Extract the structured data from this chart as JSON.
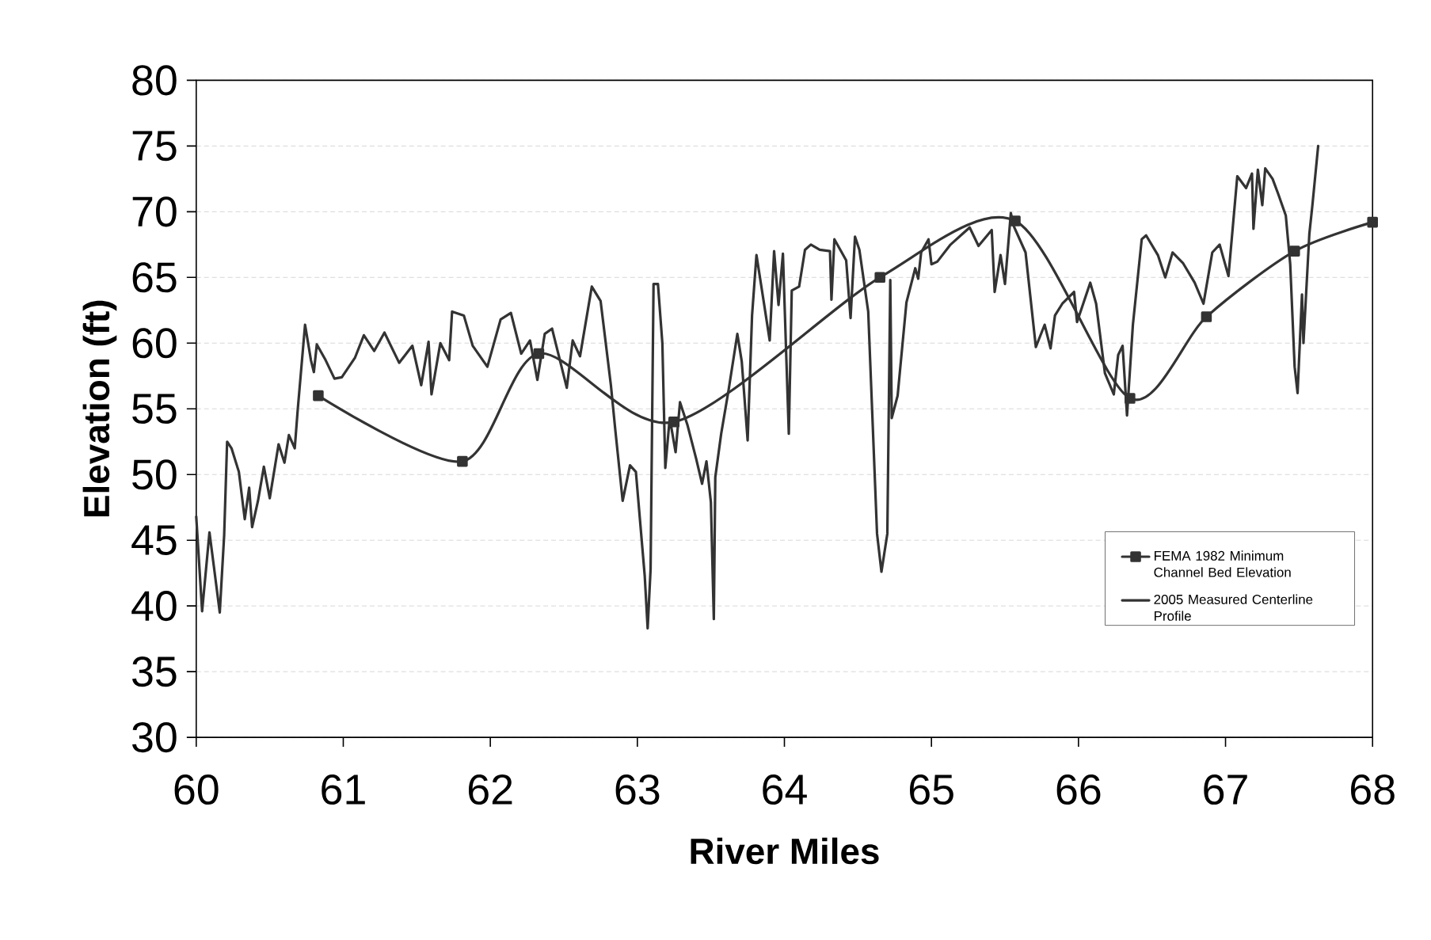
{
  "chart_data": {
    "type": "line",
    "xlabel": "River Miles",
    "ylabel": "Elevation (ft)",
    "xlim": [
      60,
      68
    ],
    "ylim": [
      30,
      80
    ],
    "xticks": [
      60,
      61,
      62,
      63,
      64,
      65,
      66,
      67,
      68
    ],
    "yticks": [
      30,
      35,
      40,
      45,
      50,
      55,
      60,
      65,
      70,
      75,
      80
    ],
    "grid": "y",
    "legend": "right",
    "line_style": "solid",
    "series": [
      {
        "name": "FEMA 1982 Minimum Channel Bed Elevation",
        "color": "#333333",
        "marker": "square",
        "x": [
          60.83,
          61.81,
          62.33,
          63.25,
          64.65,
          65.57,
          66.35,
          66.87,
          67.47,
          68
        ],
        "values": [
          56,
          51,
          59.2,
          54,
          65,
          69.3,
          55.8,
          62,
          67,
          69.2
        ]
      },
      {
        "name": "2005 Measured Centerline Profile",
        "color": "#333333",
        "marker": "none",
        "x": [
          60.0,
          60.04,
          60.09,
          60.12,
          60.16,
          60.19,
          60.21,
          60.24,
          60.29,
          60.33,
          60.36,
          60.38,
          60.42,
          60.46,
          60.5,
          60.56,
          60.6,
          60.63,
          60.67,
          60.69,
          60.74,
          60.78,
          60.8,
          60.82,
          60.88,
          60.94,
          60.99,
          61.08,
          61.14,
          61.21,
          61.28,
          61.38,
          61.47,
          61.53,
          61.58,
          61.6,
          61.66,
          61.72,
          61.74,
          61.82,
          61.88,
          61.98,
          62.07,
          62.14,
          62.21,
          62.27,
          62.32,
          62.37,
          62.42,
          62.52,
          62.56,
          62.61,
          62.69,
          62.75,
          62.82,
          62.85,
          62.9,
          62.95,
          62.99,
          63.05,
          63.07,
          63.09,
          63.11,
          63.14,
          63.17,
          63.19,
          63.22,
          63.26,
          63.29,
          63.34,
          63.4,
          63.44,
          63.47,
          63.5,
          63.52,
          63.53,
          63.57,
          63.62,
          63.68,
          63.71,
          63.75,
          63.78,
          63.81,
          63.86,
          63.9,
          63.93,
          63.96,
          63.99,
          64.03,
          64.05,
          64.1,
          64.14,
          64.18,
          64.24,
          64.31,
          64.32,
          64.34,
          64.39,
          64.42,
          64.45,
          64.48,
          64.51,
          64.57,
          64.63,
          64.66,
          64.7,
          64.72,
          64.73,
          64.77,
          64.83,
          64.89,
          64.91,
          64.93,
          64.98,
          65.0,
          65.04,
          65.13,
          65.21,
          65.26,
          65.32,
          65.41,
          65.43,
          65.47,
          65.5,
          65.54,
          65.56,
          65.64,
          65.71,
          65.77,
          65.81,
          65.84,
          65.89,
          65.97,
          65.99,
          66.08,
          66.12,
          66.18,
          66.24,
          66.27,
          66.3,
          66.33,
          66.37,
          66.43,
          66.46,
          66.54,
          66.59,
          66.64,
          66.71,
          66.79,
          66.85,
          66.91,
          66.96,
          67.02,
          67.08,
          67.14,
          67.18,
          67.19,
          67.22,
          67.25,
          67.27,
          67.32,
          67.36,
          67.41,
          67.44,
          67.47,
          67.49,
          67.52,
          67.53,
          67.57,
          67.59,
          67.63
        ],
        "values": [
          46.8,
          39.6,
          45.6,
          43,
          39.5,
          45.4,
          52.5,
          52,
          50.2,
          46.6,
          49,
          46,
          48,
          50.6,
          48.2,
          52.3,
          50.9,
          53,
          52,
          54.9,
          61.4,
          58.7,
          57.8,
          59.9,
          58.7,
          57.3,
          57.4,
          58.9,
          60.6,
          59.4,
          60.8,
          58.5,
          59.8,
          56.8,
          60.1,
          56.1,
          60,
          58.7,
          62.4,
          62.1,
          59.8,
          58.2,
          61.8,
          62.3,
          59.2,
          60.2,
          57.2,
          60.7,
          61.1,
          56.6,
          60.2,
          59,
          64.3,
          63.2,
          56.8,
          53.4,
          48,
          50.7,
          50.2,
          42.3,
          38.3,
          42.8,
          64.5,
          64.5,
          60,
          50.5,
          54.3,
          51.7,
          55.5,
          53.8,
          51.2,
          49.3,
          51,
          47.9,
          39,
          49.8,
          53.1,
          56.4,
          60.7,
          58.6,
          52.6,
          62.1,
          66.7,
          63.1,
          60.2,
          67,
          62.9,
          66.8,
          53.1,
          64,
          64.3,
          67.1,
          67.5,
          67.1,
          67,
          63.3,
          67.9,
          66.9,
          66.3,
          61.9,
          68.1,
          67.1,
          62.4,
          45.5,
          42.6,
          45.5,
          64.8,
          54.3,
          56,
          63.1,
          65.7,
          64.9,
          66.9,
          67.9,
          66,
          66.2,
          67.5,
          68.3,
          68.8,
          67.4,
          68.6,
          63.9,
          66.7,
          64.5,
          69.9,
          68.9,
          66.9,
          59.7,
          61.4,
          59.6,
          62.1,
          63,
          63.9,
          61.6,
          64.6,
          63,
          57.7,
          56.1,
          59.1,
          59.8,
          54.5,
          61.4,
          67.9,
          68.2,
          66.7,
          65,
          66.9,
          66.1,
          64.6,
          63,
          66.9,
          67.5,
          65.1,
          72.7,
          71.8,
          72.9,
          68.7,
          73.2,
          70.5,
          73.3,
          72.5,
          71.3,
          69.7,
          66,
          58.2,
          56.2,
          63.7,
          60,
          68.3,
          70.4,
          75
        ]
      }
    ]
  }
}
